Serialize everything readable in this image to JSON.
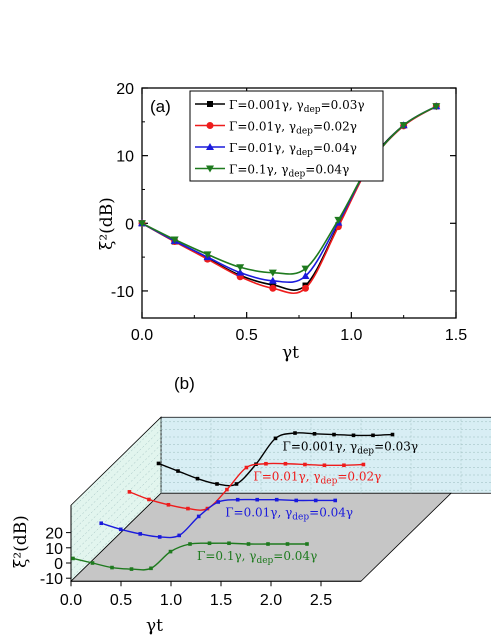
{
  "colors": {
    "black": "#000000",
    "red": "#ee1c1c",
    "blue": "#1a1adc",
    "green": "#1e7a1e",
    "back_wall": "#d8eef4",
    "side_wall": "#e2f5ee",
    "floor": "#c6c6c6"
  },
  "chart_data": [
    {
      "type": "line",
      "panel": "(a)",
      "xlabel": "γt",
      "ylabel": "ξ²(dB)",
      "xlim": [
        0.0,
        1.5
      ],
      "ylim": [
        -14,
        20
      ],
      "xticks": [
        "0.0",
        "0.5",
        "1.0",
        "1.5"
      ],
      "yticks": [
        "-10",
        "0",
        "10",
        "20"
      ],
      "legend_position": "top-left",
      "series": [
        {
          "name": "Γ=0.001γ, γdep=0.03γ",
          "marker": "square",
          "color": "#000000",
          "x": [
            0.0,
            0.156,
            0.313,
            0.469,
            0.625,
            0.781,
            0.938,
            1.094,
            1.25,
            1.406
          ],
          "y": [
            0.0,
            -2.7,
            -5.2,
            -7.7,
            -9.1,
            -9.2,
            -0.3,
            9.2,
            14.5,
            17.3
          ]
        },
        {
          "name": "Γ=0.01γ, γdep=0.02γ",
          "marker": "circle",
          "color": "#ee1c1c",
          "x": [
            0.0,
            0.156,
            0.313,
            0.469,
            0.625,
            0.781,
            0.938,
            1.094,
            1.25,
            1.406
          ],
          "y": [
            0.0,
            -2.7,
            -5.3,
            -7.9,
            -9.6,
            -9.6,
            -0.5,
            9.0,
            14.4,
            17.3
          ]
        },
        {
          "name": "Γ=0.01γ, γdep=0.04γ",
          "marker": "triangle-up",
          "color": "#1a1adc",
          "x": [
            0.0,
            0.156,
            0.313,
            0.469,
            0.625,
            0.781,
            0.938,
            1.094,
            1.25,
            1.406
          ],
          "y": [
            0.0,
            -2.6,
            -5.0,
            -7.3,
            -8.5,
            -7.8,
            0.1,
            9.1,
            14.5,
            17.3
          ]
        },
        {
          "name": "Γ=0.1γ, γdep=0.04γ",
          "marker": "triangle-down",
          "color": "#1e7a1e",
          "x": [
            0.0,
            0.156,
            0.313,
            0.469,
            0.625,
            0.781,
            0.938,
            1.094,
            1.25,
            1.406
          ],
          "y": [
            0.0,
            -2.4,
            -4.6,
            -6.5,
            -7.3,
            -6.7,
            0.5,
            9.1,
            14.5,
            17.3
          ]
        }
      ]
    },
    {
      "type": "line",
      "panel": "(b)",
      "subtype": "3d-waterfall",
      "xlabel": "γt",
      "ylabel": "ξ²(dB)",
      "xticks": [
        "0.0",
        "0.5",
        "1.0",
        "1.5",
        "2.0",
        "2.5"
      ],
      "yticks": [
        "-10",
        "0",
        "10",
        "20"
      ],
      "series": [
        {
          "label_text_a": "Γ=0.001γ, γ",
          "label_sub": "dep",
          "label_text_b": "=0.03γ",
          "color": "#000000",
          "x": [
            0.0,
            0.25,
            0.5,
            0.75,
            1.0,
            1.25,
            1.5,
            1.75,
            2.0,
            2.25,
            2.5,
            2.75,
            3.0
          ],
          "y": [
            10.5,
            5.5,
            0.5,
            -3.0,
            -3.0,
            10.0,
            27.0,
            30.5,
            30.0,
            29.5,
            29.0,
            29.0,
            29.5
          ]
        },
        {
          "label_text_a": "Γ=0.01γ, γ",
          "label_sub": "dep",
          "label_text_b": "=0.02γ",
          "color": "#ee1c1c",
          "x": [
            0.0,
            0.25,
            0.5,
            0.75,
            1.0,
            1.25,
            1.5,
            1.75,
            2.0,
            2.25,
            2.5,
            2.75,
            3.0
          ],
          "y": [
            10.5,
            5.5,
            2.0,
            -0.5,
            -0.5,
            12.0,
            26.5,
            29.0,
            29.0,
            28.5,
            28.0,
            28.0,
            28.5
          ]
        },
        {
          "label_text_a": "Γ=0.01γ, γ",
          "label_sub": "dep",
          "label_text_b": "=0.04γ",
          "color": "#1a1adc",
          "x": [
            0.0,
            0.25,
            0.5,
            0.75,
            1.0,
            1.25,
            1.5,
            1.75,
            2.0,
            2.25,
            2.5,
            2.75,
            3.0
          ],
          "y": [
            8.0,
            4.0,
            1.0,
            -1.0,
            0.0,
            12.5,
            22.0,
            23.5,
            23.5,
            23.5,
            23.0,
            23.0,
            23.0
          ]
        },
        {
          "label_text_a": "Γ=0.1γ, γ",
          "label_sub": "dep",
          "label_text_b": "=0.04γ",
          "color": "#1e7a1e",
          "x": [
            0.0,
            0.25,
            0.5,
            0.75,
            1.0,
            1.25,
            1.5,
            1.75,
            2.0,
            2.25,
            2.5,
            2.75,
            3.0
          ],
          "y": [
            3.0,
            0.0,
            -3.0,
            -4.0,
            -3.5,
            7.5,
            12.5,
            13.0,
            13.0,
            12.5,
            12.5,
            12.5,
            12.5
          ]
        }
      ]
    }
  ]
}
